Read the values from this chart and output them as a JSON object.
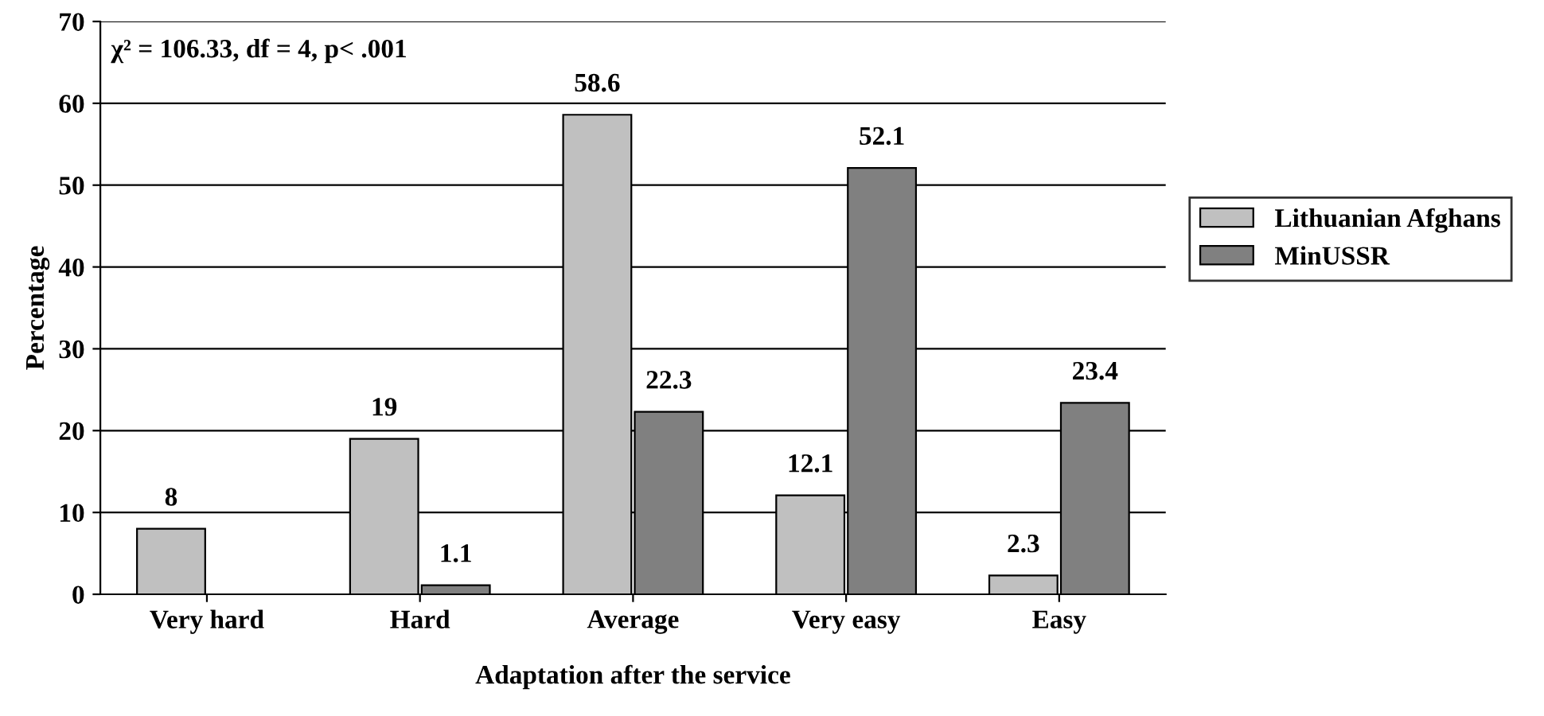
{
  "chart_data": {
    "type": "bar",
    "xlabel": "Adaptation after the service",
    "ylabel": "Percentage",
    "categories": [
      "Very hard",
      "Hard",
      "Average",
      "Very easy",
      "Easy"
    ],
    "series": [
      {
        "name": "Lithuanian Afghans",
        "color": "#c0c0c0",
        "values": [
          8,
          19,
          58.6,
          12.1,
          2.3
        ],
        "value_labels": [
          "8",
          "19",
          "58.6",
          "12.1",
          "2.3"
        ]
      },
      {
        "name": "MinUSSR",
        "color": "#808080",
        "values": [
          null,
          1.1,
          22.3,
          52.1,
          23.4
        ],
        "value_labels": [
          null,
          "1.1",
          "22.3",
          "52.1",
          "23.4"
        ]
      }
    ],
    "ylim": [
      0,
      70
    ],
    "yticks": [
      0,
      10,
      20,
      30,
      40,
      50,
      60,
      70
    ],
    "grid": "y",
    "legend": "right",
    "annotations": [
      "χ² = 106.33, df = 4, p< .001"
    ]
  }
}
